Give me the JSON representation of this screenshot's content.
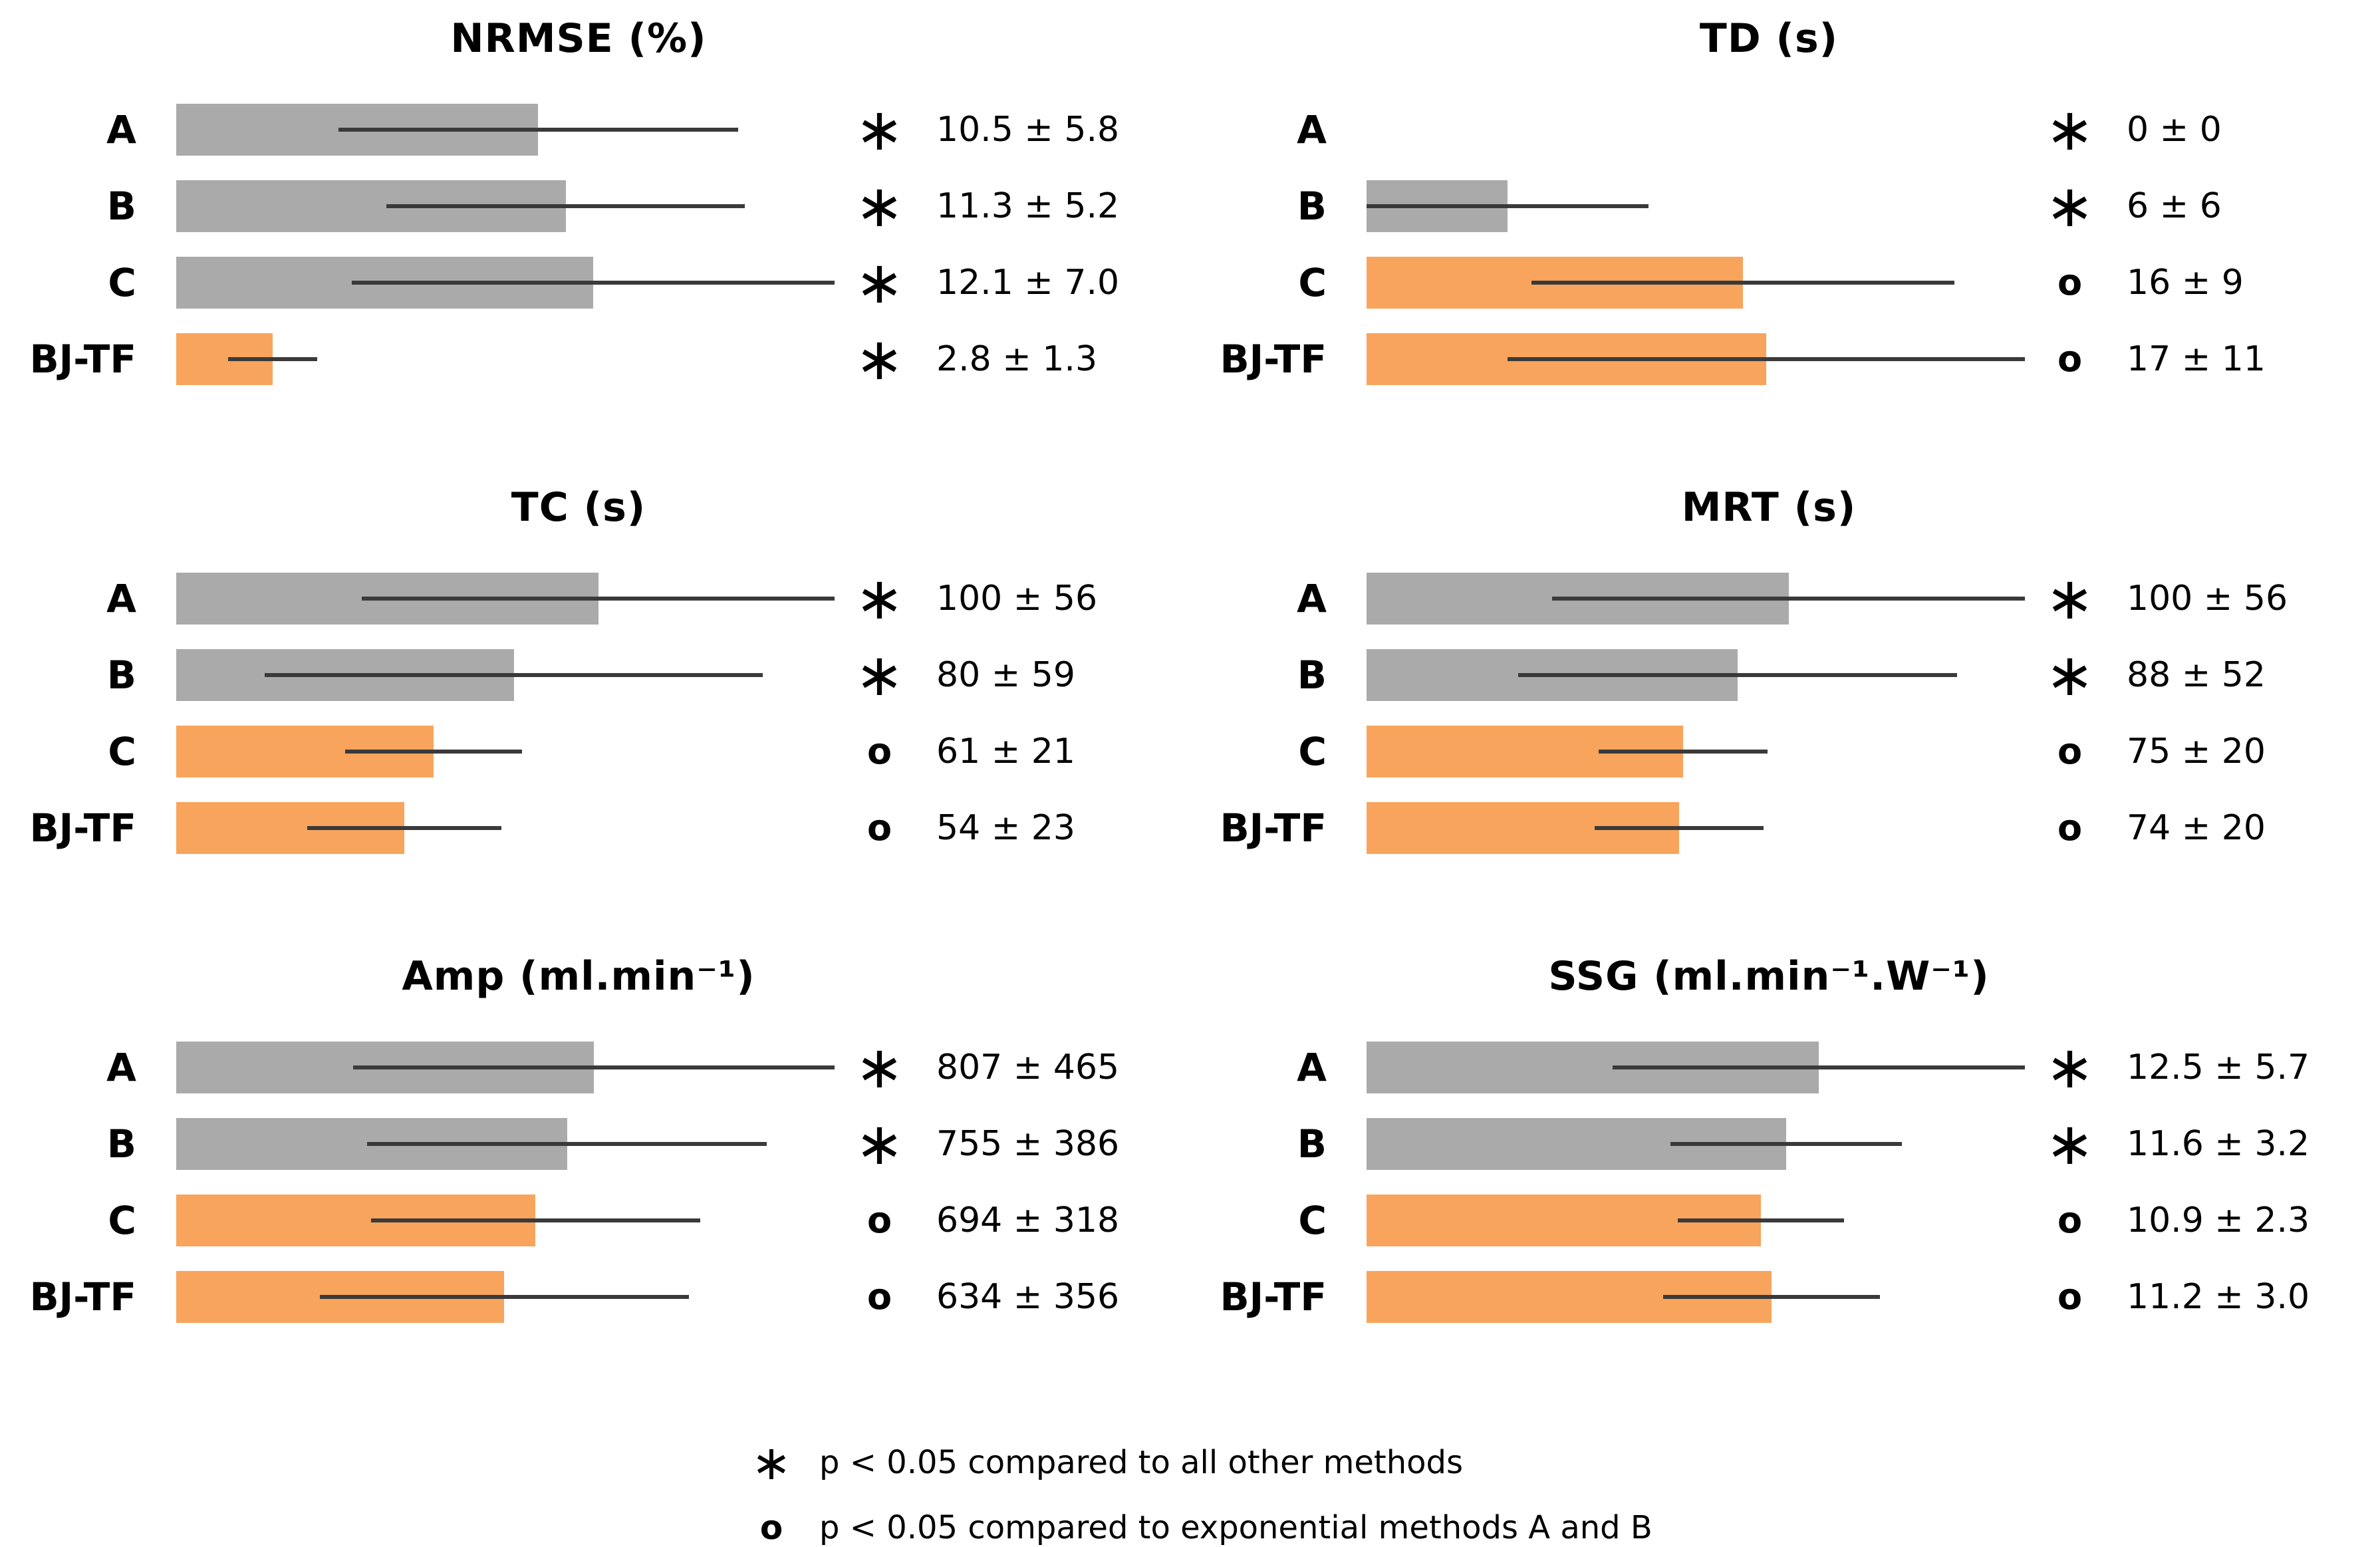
{
  "chart_data": [
    {
      "type": "bar",
      "orientation": "horizontal",
      "title": "NRMSE (%)",
      "categories": [
        "A",
        "B",
        "C",
        "BJ-TF"
      ],
      "values": [
        10.5,
        11.3,
        12.1,
        2.8
      ],
      "errors": [
        5.8,
        5.2,
        7.0,
        1.3
      ],
      "labels": [
        "10.5 ± 5.8",
        "11.3 ± 5.2",
        "12.1 ± 7.0",
        "2.8 ± 1.3"
      ],
      "markers": [
        "asterisk",
        "asterisk",
        "asterisk",
        "asterisk"
      ],
      "bar_colors": [
        "gray",
        "gray",
        "gray",
        "orange"
      ],
      "xlim": [
        0,
        19.1
      ],
      "grid": false,
      "axis_lines": false
    },
    {
      "type": "bar",
      "orientation": "horizontal",
      "title": "TD (s)",
      "categories": [
        "A",
        "B",
        "C",
        "BJ-TF"
      ],
      "values": [
        0,
        6,
        16,
        17
      ],
      "errors": [
        0,
        6,
        9,
        11
      ],
      "labels": [
        "0 ± 0",
        "6 ± 6",
        "16 ± 9",
        "17 ± 11"
      ],
      "markers": [
        "asterisk",
        "asterisk",
        "circle",
        "circle"
      ],
      "bar_colors": [
        "none",
        "gray",
        "orange",
        "orange"
      ],
      "xlim": [
        0,
        28
      ],
      "grid": false,
      "axis_lines": false
    },
    {
      "type": "bar",
      "orientation": "horizontal",
      "title": "TC (s)",
      "categories": [
        "A",
        "B",
        "C",
        "BJ-TF"
      ],
      "values": [
        100,
        80,
        61,
        54
      ],
      "errors": [
        56,
        59,
        21,
        23
      ],
      "labels": [
        "100 ± 56",
        "80 ± 59",
        "61 ± 21",
        "54 ± 23"
      ],
      "markers": [
        "asterisk",
        "asterisk",
        "circle",
        "circle"
      ],
      "bar_colors": [
        "gray",
        "gray",
        "orange",
        "orange"
      ],
      "xlim": [
        0,
        156
      ],
      "grid": false,
      "axis_lines": false
    },
    {
      "type": "bar",
      "orientation": "horizontal",
      "title": "MRT (s)",
      "categories": [
        "A",
        "B",
        "C",
        "BJ-TF"
      ],
      "values": [
        100,
        88,
        75,
        74
      ],
      "errors": [
        56,
        52,
        20,
        20
      ],
      "labels": [
        "100 ± 56",
        "88 ± 52",
        "75 ± 20",
        "74 ± 20"
      ],
      "markers": [
        "asterisk",
        "asterisk",
        "circle",
        "circle"
      ],
      "bar_colors": [
        "gray",
        "gray",
        "orange",
        "orange"
      ],
      "xlim": [
        0,
        156
      ],
      "grid": false,
      "axis_lines": false
    },
    {
      "type": "bar",
      "orientation": "horizontal",
      "title": "Amp (ml.min⁻¹)",
      "categories": [
        "A",
        "B",
        "C",
        "BJ-TF"
      ],
      "values": [
        807,
        755,
        694,
        634
      ],
      "errors": [
        465,
        386,
        318,
        356
      ],
      "labels": [
        "807 ± 465",
        "755 ± 386",
        "694 ± 318",
        "634 ± 356"
      ],
      "markers": [
        "asterisk",
        "asterisk",
        "circle",
        "circle"
      ],
      "bar_colors": [
        "gray",
        "gray",
        "orange",
        "orange"
      ],
      "xlim": [
        0,
        1272
      ],
      "grid": false,
      "axis_lines": false
    },
    {
      "type": "bar",
      "orientation": "horizontal",
      "title": "SSG (ml.min⁻¹.W⁻¹)",
      "categories": [
        "A",
        "B",
        "C",
        "BJ-TF"
      ],
      "values": [
        12.5,
        11.6,
        10.9,
        11.2
      ],
      "errors": [
        5.7,
        3.2,
        2.3,
        3.0
      ],
      "labels": [
        "12.5 ± 5.7",
        "11.6 ± 3.2",
        "10.9 ± 2.3",
        "11.2 ± 3.0"
      ],
      "markers": [
        "asterisk",
        "asterisk",
        "circle",
        "circle"
      ],
      "bar_colors": [
        "gray",
        "gray",
        "orange",
        "orange"
      ],
      "xlim": [
        0,
        18.2
      ],
      "grid": false,
      "axis_lines": false
    }
  ],
  "markers_glyphs": {
    "asterisk": "∗",
    "circle": "o"
  },
  "colors": {
    "gray": "#AAAAAA",
    "orange": "#F8A45C",
    "error_line": "#3A3A3A",
    "text": "#000000",
    "background": "#FFFFFF"
  },
  "legend": {
    "items": [
      {
        "marker": "asterisk",
        "text": "p < 0.05 compared to all other methods"
      },
      {
        "marker": "circle",
        "text": "p < 0.05 compared to exponential methods A and B"
      }
    ]
  }
}
